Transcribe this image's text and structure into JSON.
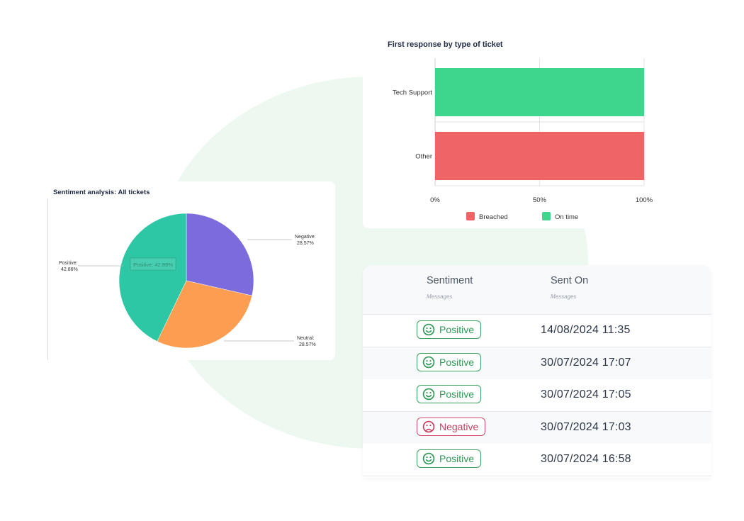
{
  "colors": {
    "on_time": "#3dd68c",
    "breached": "#ef6464",
    "negative_slice": "#7c6bdc",
    "neutral_slice": "#fc9d51",
    "positive_slice": "#2ec7a5",
    "positive_badge": "#3ba35f",
    "negative_badge": "#d64b6b"
  },
  "chart_data": [
    {
      "type": "bar",
      "orientation": "horizontal",
      "title": "First response by type of ticket",
      "categories": [
        "Tech Support",
        "Other"
      ],
      "series": [
        {
          "name": "Breached",
          "values": [
            0,
            100
          ]
        },
        {
          "name": "On time",
          "values": [
            100,
            0
          ]
        }
      ],
      "x_ticks": [
        "0%",
        "50%",
        "100%"
      ],
      "xlim": [
        0,
        100
      ],
      "grid": true,
      "legend": "bottom"
    },
    {
      "type": "pie",
      "title": "Sentiment analysis: All tickets",
      "slices": [
        {
          "name": "Negative",
          "value": 28.57,
          "label": "Negative:",
          "value_label": "28.57%"
        },
        {
          "name": "Neutral",
          "value": 28.57,
          "label": "Neutral:",
          "value_label": "28.57%"
        },
        {
          "name": "Positive",
          "value": 42.86,
          "label": "Positive:",
          "value_label": "42.86%"
        }
      ],
      "tooltip": "Positive: 42.86%"
    }
  ],
  "table": {
    "columns": [
      {
        "title": "Sentiment",
        "subtitle": "Messages"
      },
      {
        "title": "Sent On",
        "subtitle": "Messages"
      }
    ],
    "rows": [
      {
        "sentiment": "Positive",
        "icon": "smile-face-icon",
        "sent_on": "14/08/2024 11:35"
      },
      {
        "sentiment": "Positive",
        "icon": "smile-face-icon",
        "sent_on": "30/07/2024 17:07"
      },
      {
        "sentiment": "Positive",
        "icon": "smile-face-icon",
        "sent_on": "30/07/2024 17:05"
      },
      {
        "sentiment": "Negative",
        "icon": "frown-face-icon",
        "sent_on": "30/07/2024 17:03"
      },
      {
        "sentiment": "Positive",
        "icon": "smile-face-icon",
        "sent_on": "30/07/2024 16:58"
      }
    ]
  }
}
